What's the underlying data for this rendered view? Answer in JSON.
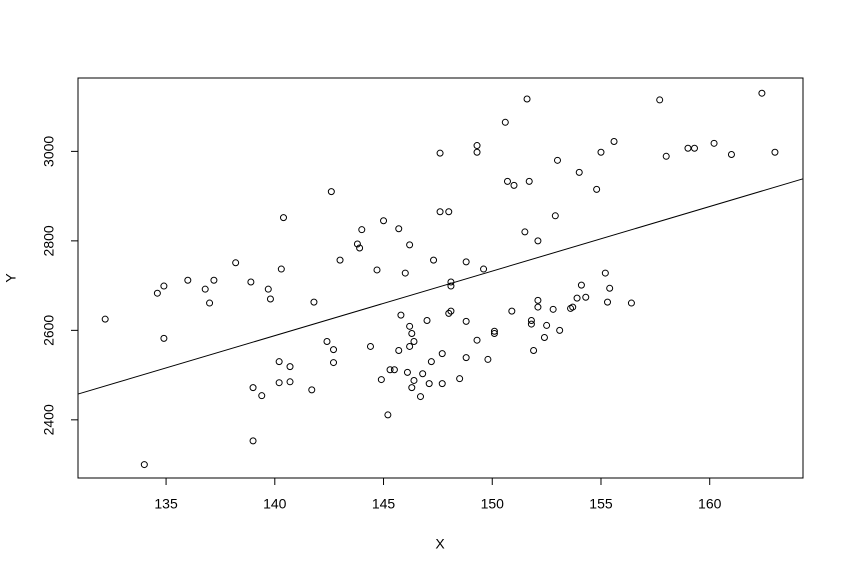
{
  "chart_data": {
    "type": "scatter",
    "x_label": "X",
    "y_label": "Y",
    "x": [
      132.2,
      134.0,
      134.6,
      134.9,
      134.9,
      136.0,
      136.8,
      137.0,
      137.2,
      138.2,
      138.9,
      139.0,
      139.0,
      139.4,
      139.7,
      139.8,
      140.3,
      140.4,
      140.2,
      140.2,
      140.7,
      140.7,
      141.7,
      141.8,
      142.6,
      142.4,
      142.7,
      142.7,
      143.0,
      143.8,
      143.9,
      144.0,
      144.4,
      144.7,
      145.0,
      144.9,
      145.2,
      145.3,
      145.5,
      145.7,
      145.7,
      145.8,
      146.0,
      146.1,
      146.2,
      146.2,
      146.2,
      146.3,
      146.3,
      146.4,
      146.4,
      146.7,
      146.8,
      147.0,
      147.1,
      147.2,
      147.3,
      147.6,
      147.6,
      147.7,
      147.7,
      148.0,
      148.0,
      148.1,
      148.1,
      148.1,
      148.5,
      148.8,
      148.8,
      148.8,
      149.3,
      149.3,
      149.3,
      149.6,
      149.8,
      150.1,
      150.1,
      150.6,
      150.7,
      150.9,
      151.0,
      151.5,
      151.6,
      151.7,
      151.8,
      151.8,
      151.9,
      152.1,
      152.1,
      152.1,
      152.4,
      152.5,
      152.8,
      152.9,
      153.0,
      153.1,
      153.6,
      153.7,
      153.9,
      154.0,
      154.1,
      154.3,
      154.8,
      155.0,
      155.2,
      155.3,
      155.4,
      155.6,
      156.4,
      157.7,
      158.0,
      159.0,
      159.3,
      160.2,
      161.0,
      162.4,
      163.0
    ],
    "y": [
      2625,
      2300,
      2683,
      2699,
      2582,
      2712,
      2692,
      2661,
      2712,
      2751,
      2708,
      2472,
      2353,
      2454,
      2692,
      2670,
      2737,
      2852,
      2530,
      2483,
      2519,
      2485,
      2467,
      2663,
      2910,
      2575,
      2557,
      2528,
      2757,
      2793,
      2784,
      2825,
      2564,
      2735,
      2845,
      2490,
      2411,
      2512,
      2512,
      2827,
      2555,
      2634,
      2728,
      2506,
      2564,
      2791,
      2609,
      2472,
      2593,
      2488,
      2575,
      2452,
      2503,
      2622,
      2481,
      2530,
      2757,
      2996,
      2865,
      2481,
      2548,
      2865,
      2638,
      2643,
      2699,
      2708,
      2492,
      2753,
      2620,
      2539,
      3013,
      2998,
      2578,
      2737,
      2535,
      2598,
      2593,
      3065,
      2933,
      2643,
      2924,
      2820,
      3117,
      2933,
      2622,
      2614,
      2555,
      2800,
      2667,
      2652,
      2584,
      2611,
      2647,
      2856,
      2980,
      2600,
      2649,
      2652,
      2672,
      2953,
      2701,
      2674,
      2915,
      2998,
      2728,
      2663,
      2694,
      3022,
      2661,
      3115,
      2989,
      3007,
      3007,
      3018,
      2993,
      3130,
      2998
    ],
    "color": "#000000",
    "fit_line": {
      "intercept": 568,
      "slope": 14.43
    },
    "xlim": [
      130.95,
      164.29
    ],
    "ylim": [
      2270,
      3164
    ],
    "xticks": [
      135,
      140,
      145,
      150,
      155,
      160
    ],
    "yticks": [
      2400,
      2600,
      2800,
      3000
    ]
  }
}
